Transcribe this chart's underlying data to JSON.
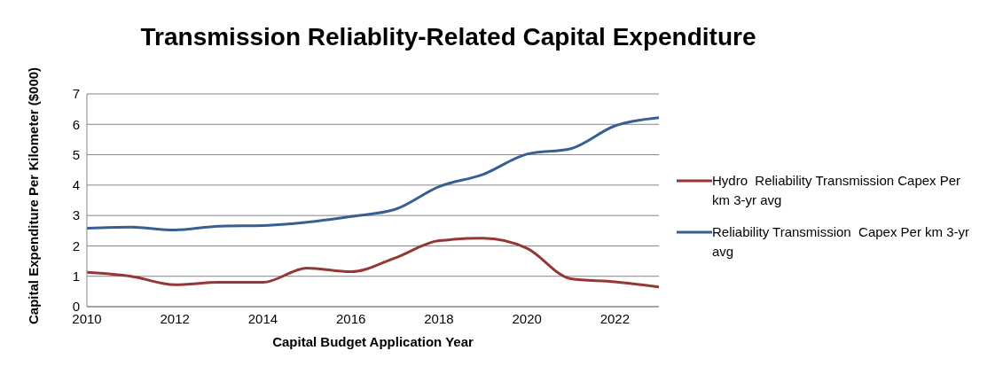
{
  "chart_data": {
    "type": "line",
    "title": "Transmission Reliablity-Related Capital Expenditure",
    "xlabel": "Capital Budget Application Year",
    "ylabel": "Capital Expenditure Per Kilometer ($000)",
    "x": [
      2010,
      2011,
      2012,
      2013,
      2014,
      2015,
      2016,
      2017,
      2018,
      2019,
      2020,
      2021,
      2022,
      2023
    ],
    "series": [
      {
        "name": "Hydro  Reliability Transmission Capex Per km 3-yr avg",
        "color": "#953735",
        "values": [
          1.13,
          1.0,
          0.72,
          0.8,
          0.8,
          1.27,
          1.15,
          1.6,
          2.17,
          2.25,
          1.92,
          0.92,
          0.82,
          0.65
        ]
      },
      {
        "name": "Reliability Transmission  Capex Per km 3-yr avg",
        "color": "#376092",
        "values": [
          2.58,
          2.62,
          2.52,
          2.65,
          2.67,
          2.78,
          2.97,
          3.2,
          3.95,
          4.35,
          5.02,
          5.2,
          5.95,
          6.22
        ]
      }
    ],
    "xlim": [
      2010,
      2023
    ],
    "xticks": [
      2010,
      2012,
      2014,
      2016,
      2018,
      2020,
      2022
    ],
    "ylim": [
      0,
      7
    ],
    "yticks": [
      0,
      1,
      2,
      3,
      4,
      5,
      6,
      7
    ],
    "grid": "y",
    "legend": "right",
    "marker": "none"
  }
}
